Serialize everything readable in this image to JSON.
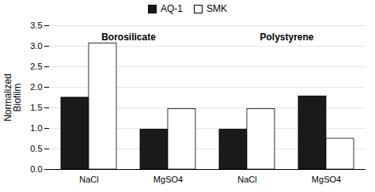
{
  "chart_data": {
    "type": "bar",
    "categories": [
      "NaCl",
      "MgSO4",
      "NaCl",
      "MgSO4"
    ],
    "series": [
      {
        "name": "AQ-1",
        "color": "#1a1a1a",
        "values": [
          1.75,
          0.97,
          0.97,
          1.78
        ]
      },
      {
        "name": "SMK",
        "color": "#ffffff",
        "values": [
          3.07,
          1.47,
          1.47,
          0.75
        ]
      }
    ],
    "ylabel": "Normalized\nBiofilm",
    "ylim": [
      0,
      3.5
    ],
    "yticks": [
      {
        "value": 0,
        "label": "0.0"
      },
      0.5,
      {
        "value": 1,
        "label": "1.0"
      },
      1.5,
      {
        "value": 2,
        "label": "2.0"
      },
      2.5,
      {
        "value": 3,
        "label": "3.0"
      },
      3.5
    ],
    "grid": true,
    "legend": "top",
    "annotations": [
      {
        "text": "Borosilicate",
        "x": 0.5,
        "y": 3.15
      },
      {
        "text": "Polystyrene",
        "x": 2.5,
        "y": 3.15
      }
    ]
  }
}
